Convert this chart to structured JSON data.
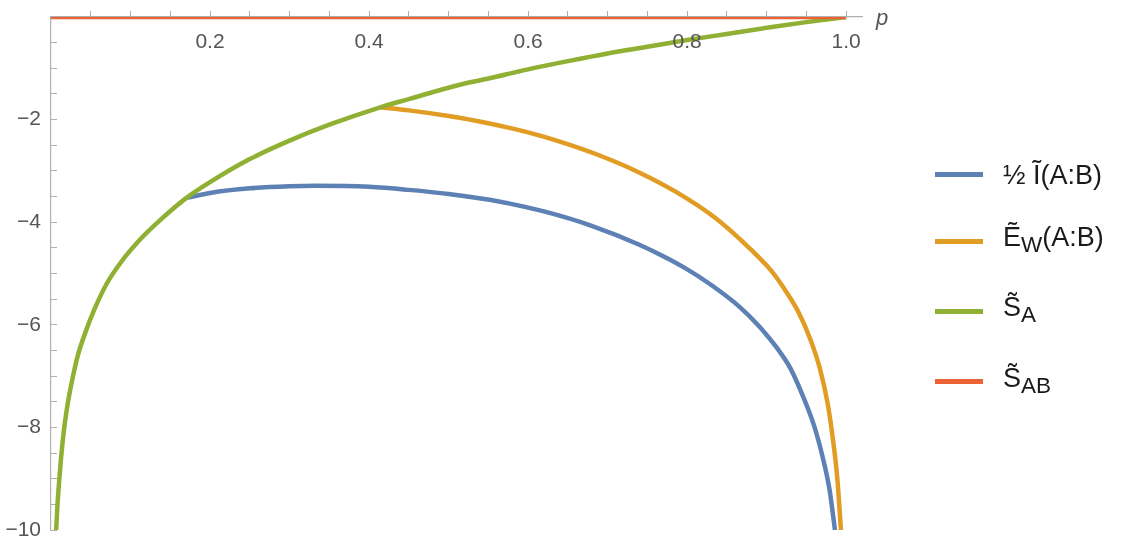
{
  "chart_data": {
    "type": "line",
    "xlabel": "p",
    "xlim": [
      0,
      1.02
    ],
    "ylim": [
      -10,
      0
    ],
    "xticks": [
      {
        "value": 0.05,
        "label": null
      },
      {
        "value": 0.1,
        "label": null
      },
      {
        "value": 0.15,
        "label": null
      },
      0.2,
      {
        "value": 0.25,
        "label": null
      },
      {
        "value": 0.3,
        "label": null
      },
      {
        "value": 0.35,
        "label": null
      },
      0.4,
      {
        "value": 0.45,
        "label": null
      },
      {
        "value": 0.5,
        "label": null
      },
      {
        "value": 0.55,
        "label": null
      },
      0.6,
      {
        "value": 0.65,
        "label": null
      },
      {
        "value": 0.7,
        "label": null
      },
      {
        "value": 0.75,
        "label": null
      },
      0.8,
      {
        "value": 0.85,
        "label": null
      },
      {
        "value": 0.9,
        "label": null
      },
      {
        "value": 0.95,
        "label": null
      },
      {
        "value": 1,
        "label": "1.0"
      }
    ],
    "yticks": [
      {
        "value": -10,
        "label": "−10"
      },
      {
        "value": -9.5,
        "label": null
      },
      {
        "value": -9,
        "label": null
      },
      {
        "value": -8.5,
        "label": null
      },
      {
        "value": -8,
        "label": "−8"
      },
      {
        "value": -7.5,
        "label": null
      },
      {
        "value": -7,
        "label": null
      },
      {
        "value": -6.5,
        "label": null
      },
      {
        "value": -6,
        "label": "−6"
      },
      {
        "value": -5.5,
        "label": null
      },
      {
        "value": -5,
        "label": null
      },
      {
        "value": -4.5,
        "label": null
      },
      {
        "value": -4,
        "label": "−4"
      },
      {
        "value": -3.5,
        "label": null
      },
      {
        "value": -3,
        "label": null
      },
      {
        "value": -2.5,
        "label": null
      },
      {
        "value": -2,
        "label": "−2"
      },
      {
        "value": -1.5,
        "label": null
      },
      {
        "value": -1,
        "label": null
      },
      {
        "value": -0.5,
        "label": null
      }
    ],
    "legend": "right",
    "series": [
      {
        "name": "½ Ĩ(A:B)",
        "color": "#5e81b5",
        "x": [
          0.172,
          0.2,
          0.25,
          0.3,
          0.333,
          0.4,
          0.45,
          0.5,
          0.565,
          0.62,
          0.68,
          0.74,
          0.796,
          0.83,
          0.866,
          0.89,
          0.913,
          0.93,
          0.947,
          0.96,
          0.971,
          0.979,
          0.986
        ],
        "values": [
          -3.52,
          -3.43,
          -3.34,
          -3.3,
          -3.29,
          -3.31,
          -3.37,
          -3.45,
          -3.6,
          -3.79,
          -4.07,
          -4.44,
          -4.88,
          -5.22,
          -5.65,
          -6.02,
          -6.45,
          -6.85,
          -7.44,
          -7.98,
          -8.61,
          -9.2,
          -10
        ]
      },
      {
        "name": "Ẽ$_{W}$(A:B)",
        "color": "#e19c24",
        "x": [
          0.414,
          0.45,
          0.5,
          0.55,
          0.6,
          0.64,
          0.69,
          0.737,
          0.785,
          0.834,
          0.878,
          0.906,
          0.924,
          0.94,
          0.955,
          0.967,
          0.977,
          0.984,
          0.989,
          0.9935
        ],
        "values": [
          -1.76,
          -1.82,
          -1.93,
          -2.07,
          -2.25,
          -2.43,
          -2.7,
          -3.01,
          -3.4,
          -3.9,
          -4.5,
          -4.95,
          -5.34,
          -5.75,
          -6.28,
          -6.85,
          -7.55,
          -8.3,
          -9.0,
          -10
        ]
      },
      {
        "name": "S̃$_{A}$",
        "color": "#8fb032",
        "x": [
          0.0065,
          0.008,
          0.01,
          0.0125,
          0.0167,
          0.022,
          0.027,
          0.0337,
          0.043,
          0.054,
          0.07,
          0.088,
          0.11,
          0.14,
          0.17,
          0.2,
          0.25,
          0.3,
          0.35,
          0.414,
          0.45,
          0.514,
          0.55,
          0.6,
          0.65,
          0.7,
          0.75,
          0.8,
          0.85,
          0.9,
          0.95,
          1
        ],
        "values": [
          -10,
          -9.55,
          -9.1,
          -8.62,
          -8.0,
          -7.45,
          -7.05,
          -6.6,
          -6.16,
          -5.72,
          -5.2,
          -4.78,
          -4.37,
          -3.92,
          -3.53,
          -3.22,
          -2.77,
          -2.41,
          -2.1,
          -1.76,
          -1.6,
          -1.32,
          -1.2,
          -1.02,
          -0.86,
          -0.71,
          -0.58,
          -0.45,
          -0.33,
          -0.21,
          -0.1,
          0
        ]
      },
      {
        "name": "S̃$_{AB}$",
        "color": "#eb6235",
        "x": [
          0,
          1
        ],
        "values": [
          0,
          0
        ]
      }
    ]
  }
}
